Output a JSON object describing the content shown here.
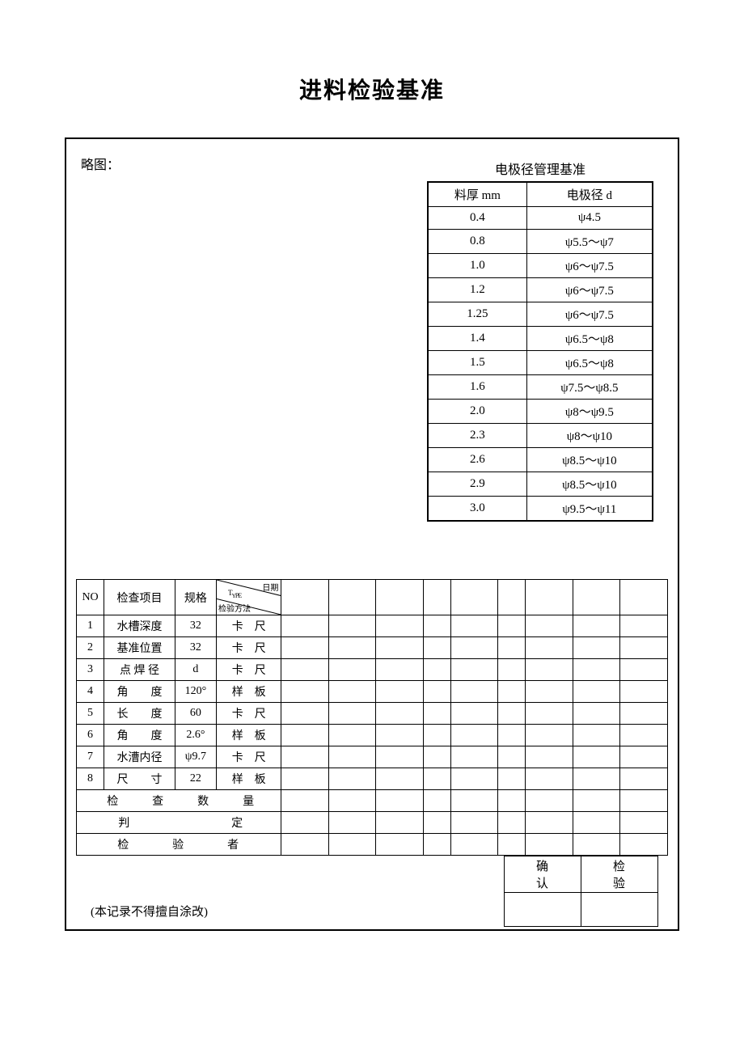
{
  "title": "进料检验基准",
  "luotu_label": "略图：",
  "electrode": {
    "title": "电极径管理基准",
    "headers": {
      "thickness": "料厚 mm",
      "diameter": "电极径 d"
    },
    "rows": [
      {
        "t": "0.4",
        "d": "ψ4.5"
      },
      {
        "t": "0.8",
        "d": "ψ5.5～ψ7"
      },
      {
        "t": "1.0",
        "d": "ψ6～ψ7.5"
      },
      {
        "t": "1.2",
        "d": "ψ6～ψ7.5"
      },
      {
        "t": "1.25",
        "d": "ψ6～ψ7.5"
      },
      {
        "t": "1.4",
        "d": "ψ6.5～ψ8"
      },
      {
        "t": "1.5",
        "d": "ψ6.5～ψ8"
      },
      {
        "t": "1.6",
        "d": "ψ7.5～ψ8.5"
      },
      {
        "t": "2.0",
        "d": "ψ8～ψ9.5"
      },
      {
        "t": "2.3",
        "d": "ψ8～ψ10"
      },
      {
        "t": "2.6",
        "d": "ψ8.5～ψ10"
      },
      {
        "t": "2.9",
        "d": "ψ8.5～ψ10"
      },
      {
        "t": "3.0",
        "d": "ψ9.5～ψ11"
      }
    ]
  },
  "inspect": {
    "headers": {
      "no": "NO",
      "item": "检查项目",
      "spec": "规格",
      "diag_top": "日期",
      "diag_mid": "TYPE",
      "diag_bot": "检验方法"
    },
    "rows": [
      {
        "no": "1",
        "item": "水槽深度",
        "spec": "32",
        "method": "卡　尺"
      },
      {
        "no": "2",
        "item": "基准位置",
        "spec": "32",
        "method": "卡　尺"
      },
      {
        "no": "3",
        "item": "点 焊 径",
        "spec": "d",
        "method": "卡　尺"
      },
      {
        "no": "4",
        "item": "角　　度",
        "spec": "120°",
        "method": "样　板"
      },
      {
        "no": "5",
        "item": "长　　度",
        "spec": "60",
        "method": "卡　尺"
      },
      {
        "no": "6",
        "item": "角　　度",
        "spec": "2.6°",
        "method": "样　板"
      },
      {
        "no": "7",
        "item": "水漕内径",
        "spec": "ψ9.7",
        "method": "卡　尺"
      },
      {
        "no": "8",
        "item": "尺　　寸",
        "spec": "22",
        "method": "样　板"
      }
    ],
    "footer": {
      "qty": "检　查　数　量",
      "judge": "判　　　　定",
      "inspector": "检　验　者"
    }
  },
  "signature": {
    "confirm": "确认",
    "inspect": "检验"
  },
  "note": "(本记录不得擅自涂改)"
}
